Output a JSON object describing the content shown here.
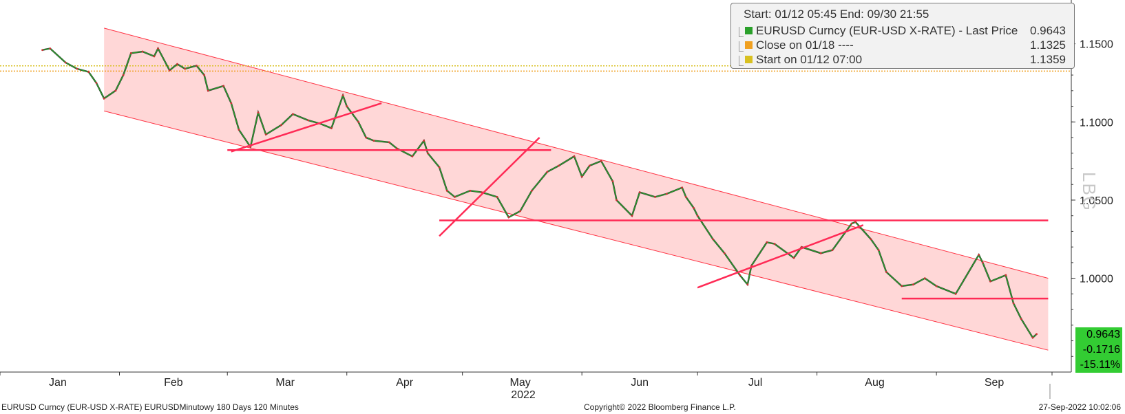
{
  "chart_data": {
    "type": "line",
    "title": "",
    "xlabel": "2022",
    "ylabel": "",
    "x_categories": [
      "Jan",
      "Feb",
      "Mar",
      "Apr",
      "May",
      "Jun",
      "Jul",
      "Aug",
      "Sep"
    ],
    "ylim": [
      0.94,
      1.178
    ],
    "y_ticks": [
      "1.1500",
      "1.1000",
      "1.0500",
      "1.0000"
    ],
    "y_tick_values": [
      1.15,
      1.1,
      1.05,
      1.0
    ],
    "grid": false,
    "legend_position": "top-right",
    "series": [
      {
        "name": "EURUSD Curncy (EUR-USD X-RATE) - Last Price",
        "color": "#2aa02a",
        "points": [
          [
            "2022-01-12",
            1.146
          ],
          [
            "2022-01-14",
            1.147
          ],
          [
            "2022-01-18",
            1.138
          ],
          [
            "2022-01-21",
            1.134
          ],
          [
            "2022-01-24",
            1.132
          ],
          [
            "2022-01-26",
            1.125
          ],
          [
            "2022-01-28",
            1.115
          ],
          [
            "2022-01-31",
            1.12
          ],
          [
            "2022-02-02",
            1.13
          ],
          [
            "2022-02-04",
            1.144
          ],
          [
            "2022-02-07",
            1.145
          ],
          [
            "2022-02-10",
            1.142
          ],
          [
            "2022-02-11",
            1.147
          ],
          [
            "2022-02-14",
            1.133
          ],
          [
            "2022-02-16",
            1.137
          ],
          [
            "2022-02-18",
            1.134
          ],
          [
            "2022-02-21",
            1.136
          ],
          [
            "2022-02-23",
            1.13
          ],
          [
            "2022-02-24",
            1.12
          ],
          [
            "2022-02-28",
            1.123
          ],
          [
            "2022-03-02",
            1.112
          ],
          [
            "2022-03-04",
            1.095
          ],
          [
            "2022-03-07",
            1.084
          ],
          [
            "2022-03-09",
            1.106
          ],
          [
            "2022-03-11",
            1.092
          ],
          [
            "2022-03-15",
            1.098
          ],
          [
            "2022-03-18",
            1.105
          ],
          [
            "2022-03-22",
            1.101
          ],
          [
            "2022-03-25",
            1.099
          ],
          [
            "2022-03-28",
            1.096
          ],
          [
            "2022-03-31",
            1.117
          ],
          [
            "2022-04-01",
            1.11
          ],
          [
            "2022-04-04",
            1.1
          ],
          [
            "2022-04-06",
            1.09
          ],
          [
            "2022-04-08",
            1.088
          ],
          [
            "2022-04-12",
            1.087
          ],
          [
            "2022-04-14",
            1.083
          ],
          [
            "2022-04-18",
            1.078
          ],
          [
            "2022-04-21",
            1.088
          ],
          [
            "2022-04-22",
            1.08
          ],
          [
            "2022-04-25",
            1.071
          ],
          [
            "2022-04-27",
            1.056
          ],
          [
            "2022-04-29",
            1.052
          ],
          [
            "2022-05-03",
            1.056
          ],
          [
            "2022-05-06",
            1.055
          ],
          [
            "2022-05-10",
            1.052
          ],
          [
            "2022-05-13",
            1.039
          ],
          [
            "2022-05-16",
            1.043
          ],
          [
            "2022-05-19",
            1.056
          ],
          [
            "2022-05-23",
            1.068
          ],
          [
            "2022-05-26",
            1.072
          ],
          [
            "2022-05-30",
            1.078
          ],
          [
            "2022-06-01",
            1.065
          ],
          [
            "2022-06-03",
            1.072
          ],
          [
            "2022-06-06",
            1.075
          ],
          [
            "2022-06-09",
            1.062
          ],
          [
            "2022-06-10",
            1.05
          ],
          [
            "2022-06-14",
            1.04
          ],
          [
            "2022-06-16",
            1.055
          ],
          [
            "2022-06-20",
            1.052
          ],
          [
            "2022-06-23",
            1.054
          ],
          [
            "2022-06-27",
            1.058
          ],
          [
            "2022-06-28",
            1.052
          ],
          [
            "2022-06-30",
            1.045
          ],
          [
            "2022-07-01",
            1.04
          ],
          [
            "2022-07-05",
            1.025
          ],
          [
            "2022-07-08",
            1.016
          ],
          [
            "2022-07-12",
            1.002
          ],
          [
            "2022-07-14",
            0.996
          ],
          [
            "2022-07-15",
            1.008
          ],
          [
            "2022-07-19",
            1.023
          ],
          [
            "2022-07-21",
            1.022
          ],
          [
            "2022-07-26",
            1.013
          ],
          [
            "2022-07-28",
            1.02
          ],
          [
            "2022-08-02",
            1.016
          ],
          [
            "2022-08-05",
            1.018
          ],
          [
            "2022-08-10",
            1.035
          ],
          [
            "2022-08-11",
            1.036
          ],
          [
            "2022-08-15",
            1.025
          ],
          [
            "2022-08-17",
            1.018
          ],
          [
            "2022-08-19",
            1.004
          ],
          [
            "2022-08-23",
            0.995
          ],
          [
            "2022-08-26",
            0.996
          ],
          [
            "2022-08-29",
            1.0
          ],
          [
            "2022-09-01",
            0.995
          ],
          [
            "2022-09-06",
            0.99
          ],
          [
            "2022-09-12",
            1.015
          ],
          [
            "2022-09-13",
            1.01
          ],
          [
            "2022-09-15",
            0.998
          ],
          [
            "2022-09-19",
            1.002
          ],
          [
            "2022-09-21",
            0.984
          ],
          [
            "2022-09-23",
            0.974
          ],
          [
            "2022-09-26",
            0.962
          ],
          [
            "2022-09-27",
            0.9643
          ]
        ]
      }
    ],
    "channel": {
      "color": "#ffd0d0",
      "upper": [
        [
          "2022-01-28",
          1.16
        ],
        [
          "2022-09-30",
          1.0
        ]
      ],
      "lower": [
        [
          "2022-01-28",
          1.107
        ],
        [
          "2022-09-30",
          0.954
        ]
      ]
    },
    "trend_lines": {
      "color": "#ff2a55",
      "segments": [
        [
          [
            "2022-03-02",
            1.081
          ],
          [
            "2022-04-10",
            1.112
          ]
        ],
        [
          [
            "2022-03-01",
            1.082
          ],
          [
            "2022-05-24",
            1.082
          ]
        ],
        [
          [
            "2022-04-25",
            1.027
          ],
          [
            "2022-05-21",
            1.09
          ]
        ],
        [
          [
            "2022-04-25",
            1.037
          ],
          [
            "2022-09-30",
            1.037
          ]
        ],
        [
          [
            "2022-07-01",
            0.994
          ],
          [
            "2022-08-13",
            1.034
          ]
        ],
        [
          [
            "2022-08-23",
            0.987
          ],
          [
            "2022-09-30",
            0.987
          ]
        ]
      ]
    },
    "reference_lines": [
      {
        "label": "Close on 01/18",
        "value": 1.1325,
        "color": "#f0a020"
      },
      {
        "label": "Start on 01/12 07:00",
        "value": 1.1359,
        "color": "#d8c020"
      }
    ]
  },
  "legend": {
    "header": "Start: 01/12 05:45 End: 09/30 21:55",
    "entries": [
      {
        "name": "EURUSD Curncy (EUR-USD X-RATE) - Last Price",
        "value": "0.9643",
        "color": "#2aa02a"
      },
      {
        "name": "Close on 01/18 ----",
        "value": "1.1325",
        "color": "#f0a020"
      },
      {
        "name": "Start on 01/12 07:00",
        "value": "1.1359",
        "color": "#d8c020"
      }
    ]
  },
  "last_price_badges": [
    "0.9643",
    "-0.1716",
    "-15.11%"
  ],
  "footer": {
    "left": "EURUSD Curncy (EUR-USD X-RATE) EURUSDMinutowy 180 Days 120 Minutes",
    "center": "Copyright© 2022 Bloomberg Finance L.P.",
    "right": "27-Sep-2022 10:02:06"
  },
  "watermark": "LBG"
}
